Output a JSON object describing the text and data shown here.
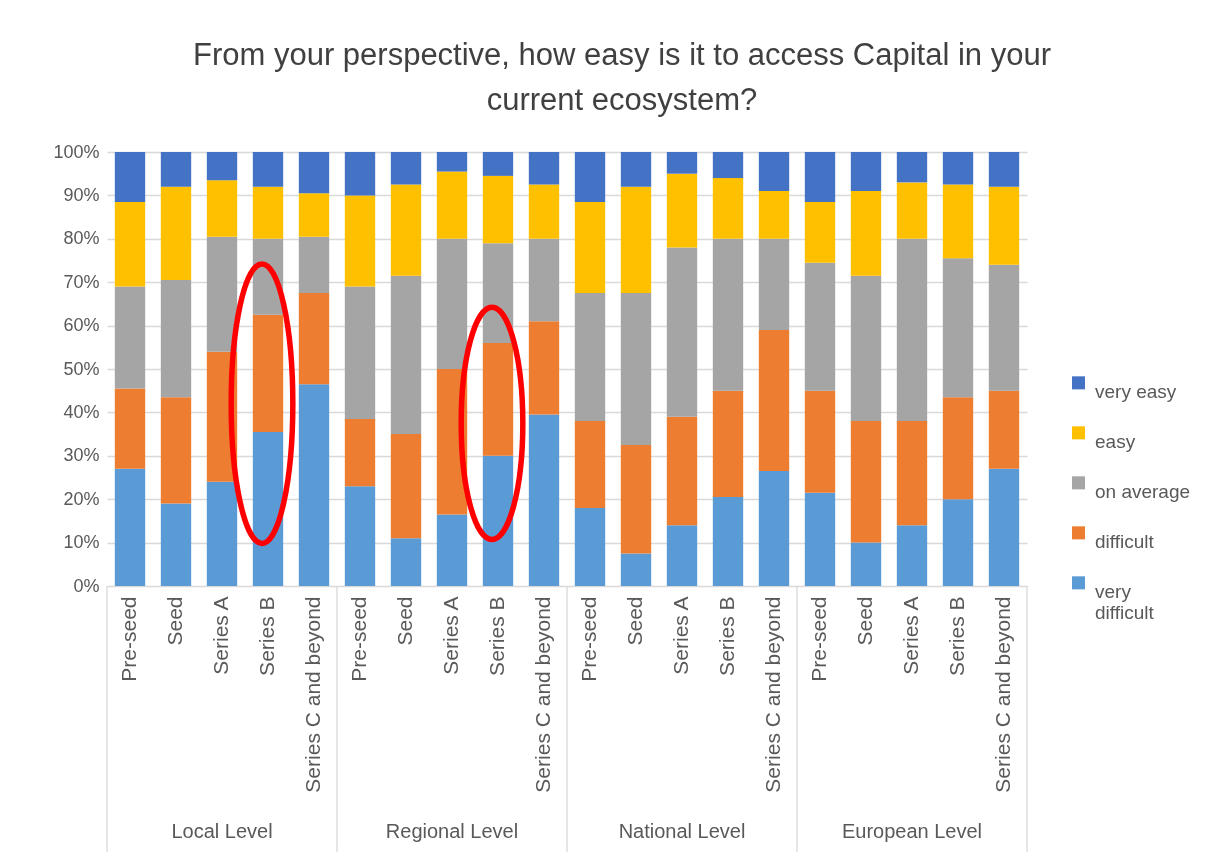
{
  "chart_data": {
    "type": "bar",
    "title": "From your perspective, how easy is it to access Capital in your current ecosystem?",
    "categories": [
      "Pre-seed",
      "Seed",
      "Series A",
      "Series B",
      "Series C and beyond",
      "Pre-seed",
      "Seed",
      "Series A",
      "Series B",
      "Series C and beyond",
      "Pre-seed",
      "Seed",
      "Series A",
      "Series B",
      "Series C and beyond",
      "Pre-seed",
      "Seed",
      "Series A",
      "Series B",
      "Series C and beyond"
    ],
    "stacked": true,
    "series": [
      {
        "name": "very difficult",
        "color": "#5b9bd5",
        "values": [
          27,
          19,
          24,
          35.5,
          46.5,
          23,
          11,
          16.5,
          30,
          39.5,
          18,
          7.5,
          14,
          20.5,
          26.5,
          21.5,
          10,
          14,
          20,
          27
        ]
      },
      {
        "name": "difficult",
        "color": "#ed7d31",
        "values": [
          18.5,
          24.5,
          30,
          27,
          21,
          15.5,
          24,
          33.5,
          26,
          21.5,
          20,
          25,
          25,
          24.5,
          32.5,
          23.5,
          28,
          24,
          23.5,
          18
        ]
      },
      {
        "name": "on average",
        "color": "#a5a5a5",
        "values": [
          23.5,
          27,
          26.5,
          17.5,
          13,
          30.5,
          36.5,
          30,
          23,
          19,
          29.5,
          35,
          39,
          35,
          21,
          29.5,
          33.5,
          42,
          32,
          29
        ]
      },
      {
        "name": "easy",
        "color": "#ffc000",
        "values": [
          19.5,
          21.5,
          13,
          12,
          10,
          21,
          21,
          15.5,
          15.5,
          12.5,
          21,
          24.5,
          17,
          14,
          11,
          14,
          19.5,
          13,
          17,
          18
        ]
      },
      {
        "name": "very easy",
        "color": "#4472c4",
        "values": [
          11.5,
          8,
          6.5,
          8,
          9.5,
          10,
          7.5,
          4.5,
          5.5,
          7.5,
          11.5,
          8,
          5,
          6,
          9,
          11.5,
          9,
          7,
          7.5,
          8
        ]
      }
    ],
    "ylim": [
      0,
      100
    ],
    "yticks": [
      {
        "value": 0,
        "label": "0%"
      },
      {
        "value": 10,
        "label": "10%"
      },
      {
        "value": 20,
        "label": "20%"
      },
      {
        "value": 30,
        "label": "30%"
      },
      {
        "value": 40,
        "label": "40%"
      },
      {
        "value": 50,
        "label": "50%"
      },
      {
        "value": 60,
        "label": "60%"
      },
      {
        "value": 70,
        "label": "70%"
      },
      {
        "value": 80,
        "label": "80%"
      },
      {
        "value": 90,
        "label": "90%"
      },
      {
        "value": 100,
        "label": "100%"
      }
    ],
    "grid": "y",
    "legend": "right",
    "annotations": [
      "Local Level",
      "Regional Level",
      "National Level",
      "European Level"
    ]
  }
}
